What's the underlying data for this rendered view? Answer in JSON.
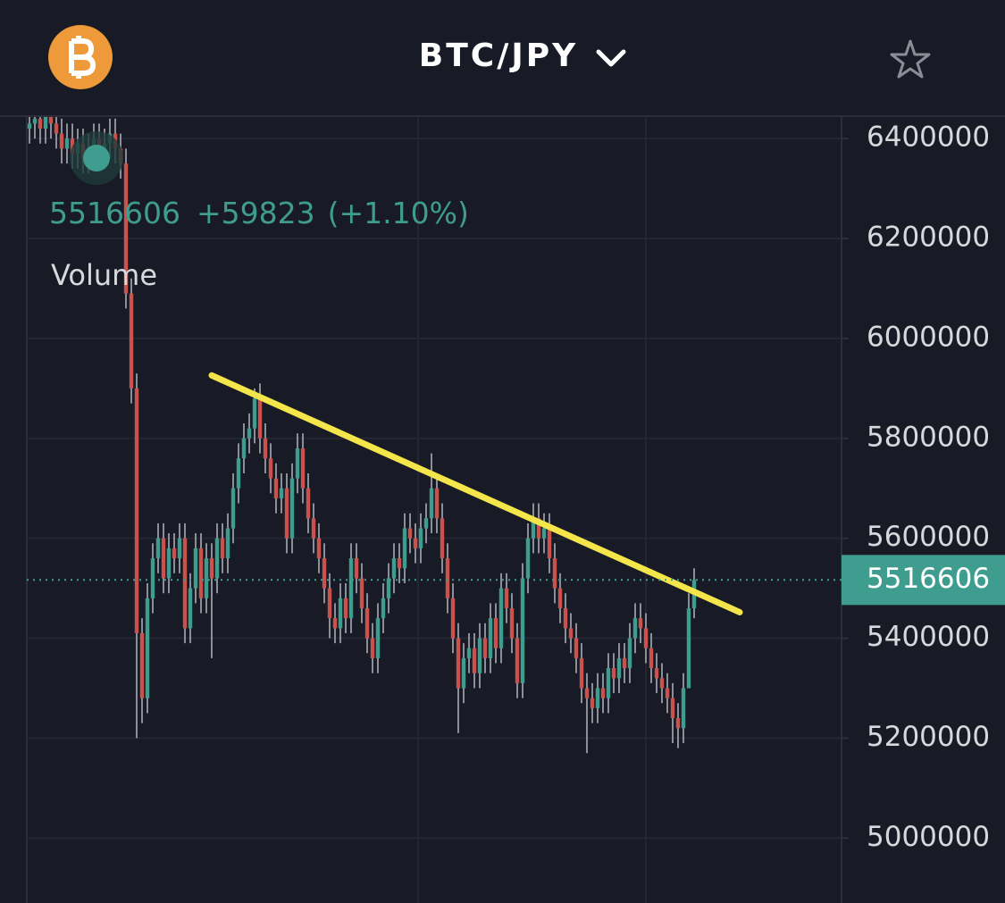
{
  "header": {
    "title": "BTC/JPY"
  },
  "chart_data": {
    "type": "candlestick",
    "indicator": "Volume",
    "legend": {
      "price": 5516606,
      "change": "+59823",
      "change_pct": "(+1.10%)"
    },
    "last_price": 5516606,
    "up_color": "#3f9d8f",
    "down_color": "#c9524d",
    "ylim": [
      4870000,
      6445000
    ],
    "yticks": [
      5000000,
      5200000,
      5400000,
      5600000,
      5800000,
      6000000,
      6200000,
      6400000
    ],
    "grid": true,
    "trendline": {
      "from": [
        34,
        5926000
      ],
      "to": [
        132.5,
        5452000
      ],
      "color": "#f3e54a"
    },
    "open": [
      6420000,
      6430000,
      6440000,
      6420000,
      6450000,
      6430000,
      6410000,
      6380000,
      6400000,
      6370000,
      6390000,
      6360000,
      6380000,
      6400000,
      6370000,
      6390000,
      6410000,
      6380000,
      6350000,
      6090000,
      5900000,
      5410000,
      5280000,
      5480000,
      5560000,
      5600000,
      5520000,
      5580000,
      5560000,
      5600000,
      5420000,
      5500000,
      5580000,
      5480000,
      5560000,
      5520000,
      5600000,
      5560000,
      5620000,
      5700000,
      5760000,
      5800000,
      5820000,
      5880000,
      5800000,
      5760000,
      5720000,
      5680000,
      5700000,
      5600000,
      5720000,
      5780000,
      5700000,
      5640000,
      5600000,
      5560000,
      5500000,
      5440000,
      5420000,
      5480000,
      5440000,
      5560000,
      5520000,
      5460000,
      5400000,
      5360000,
      5440000,
      5480000,
      5520000,
      5560000,
      5540000,
      5620000,
      5600000,
      5580000,
      5620000,
      5640000,
      5700000,
      5640000,
      5560000,
      5480000,
      5400000,
      5300000,
      5360000,
      5380000,
      5330000,
      5400000,
      5360000,
      5440000,
      5380000,
      5500000,
      5460000,
      5400000,
      5310000,
      5520000,
      5600000,
      5640000,
      5600000,
      5620000,
      5560000,
      5500000,
      5460000,
      5420000,
      5400000,
      5360000,
      5300000,
      5280000,
      5260000,
      5300000,
      5280000,
      5340000,
      5320000,
      5360000,
      5340000,
      5400000,
      5440000,
      5420000,
      5380000,
      5340000,
      5320000,
      5300000,
      5280000,
      5240000,
      5220000,
      5300000,
      5460000
    ],
    "high": [
      6460000,
      6470000,
      6470000,
      6480000,
      6480000,
      6460000,
      6440000,
      6430000,
      6430000,
      6420000,
      6420000,
      6410000,
      6430000,
      6430000,
      6420000,
      6440000,
      6440000,
      6410000,
      6380000,
      6120000,
      5930000,
      5440000,
      5510000,
      5590000,
      5630000,
      5630000,
      5610000,
      5610000,
      5630000,
      5630000,
      5530000,
      5610000,
      5610000,
      5590000,
      5590000,
      5630000,
      5630000,
      5650000,
      5730000,
      5790000,
      5830000,
      5850000,
      5900000,
      5910000,
      5830000,
      5790000,
      5750000,
      5730000,
      5730000,
      5750000,
      5810000,
      5810000,
      5730000,
      5670000,
      5630000,
      5590000,
      5530000,
      5470000,
      5510000,
      5510000,
      5590000,
      5590000,
      5550000,
      5490000,
      5430000,
      5470000,
      5510000,
      5550000,
      5590000,
      5590000,
      5650000,
      5650000,
      5630000,
      5650000,
      5670000,
      5770000,
      5730000,
      5670000,
      5590000,
      5510000,
      5430000,
      5390000,
      5410000,
      5410000,
      5430000,
      5430000,
      5470000,
      5470000,
      5530000,
      5530000,
      5490000,
      5430000,
      5550000,
      5630000,
      5670000,
      5670000,
      5650000,
      5650000,
      5590000,
      5530000,
      5490000,
      5450000,
      5430000,
      5390000,
      5330000,
      5310000,
      5330000,
      5330000,
      5370000,
      5370000,
      5390000,
      5390000,
      5430000,
      5470000,
      5470000,
      5450000,
      5410000,
      5370000,
      5350000,
      5330000,
      5310000,
      5270000,
      5330000,
      5490000,
      5540000
    ],
    "low": [
      6390000,
      6400000,
      6390000,
      6390000,
      6400000,
      6380000,
      6350000,
      6350000,
      6340000,
      6340000,
      6330000,
      6330000,
      6350000,
      6340000,
      6340000,
      6360000,
      6350000,
      6320000,
      6060000,
      5870000,
      5200000,
      5230000,
      5250000,
      5450000,
      5530000,
      5490000,
      5490000,
      5530000,
      5530000,
      5390000,
      5390000,
      5470000,
      5450000,
      5450000,
      5360000,
      5490000,
      5530000,
      5530000,
      5590000,
      5670000,
      5730000,
      5770000,
      5790000,
      5770000,
      5730000,
      5690000,
      5650000,
      5650000,
      5570000,
      5570000,
      5690000,
      5670000,
      5610000,
      5570000,
      5530000,
      5470000,
      5400000,
      5390000,
      5390000,
      5410000,
      5410000,
      5490000,
      5430000,
      5370000,
      5330000,
      5330000,
      5410000,
      5450000,
      5490000,
      5510000,
      5510000,
      5570000,
      5550000,
      5550000,
      5590000,
      5610000,
      5610000,
      5530000,
      5450000,
      5370000,
      5210000,
      5270000,
      5330000,
      5300000,
      5300000,
      5330000,
      5330000,
      5350000,
      5350000,
      5430000,
      5370000,
      5280000,
      5280000,
      5490000,
      5570000,
      5570000,
      5570000,
      5530000,
      5470000,
      5430000,
      5390000,
      5370000,
      5330000,
      5270000,
      5170000,
      5230000,
      5230000,
      5250000,
      5250000,
      5290000,
      5290000,
      5310000,
      5310000,
      5370000,
      5390000,
      5350000,
      5310000,
      5290000,
      5270000,
      5250000,
      5190000,
      5180000,
      5190000,
      5300000,
      5440000
    ],
    "close": [
      6430000,
      6440000,
      6420000,
      6450000,
      6430000,
      6410000,
      6380000,
      6400000,
      6370000,
      6390000,
      6360000,
      6380000,
      6400000,
      6370000,
      6390000,
      6410000,
      6380000,
      6350000,
      6090000,
      5900000,
      5410000,
      5280000,
      5480000,
      5560000,
      5600000,
      5520000,
      5580000,
      5560000,
      5600000,
      5420000,
      5500000,
      5580000,
      5480000,
      5560000,
      5520000,
      5600000,
      5560000,
      5620000,
      5700000,
      5760000,
      5800000,
      5820000,
      5880000,
      5800000,
      5760000,
      5720000,
      5680000,
      5700000,
      5600000,
      5720000,
      5780000,
      5700000,
      5640000,
      5600000,
      5560000,
      5500000,
      5440000,
      5420000,
      5480000,
      5440000,
      5560000,
      5520000,
      5460000,
      5400000,
      5360000,
      5440000,
      5480000,
      5520000,
      5560000,
      5540000,
      5620000,
      5600000,
      5580000,
      5620000,
      5640000,
      5700000,
      5640000,
      5560000,
      5480000,
      5400000,
      5300000,
      5360000,
      5380000,
      5330000,
      5400000,
      5360000,
      5440000,
      5380000,
      5500000,
      5460000,
      5400000,
      5310000,
      5520000,
      5600000,
      5640000,
      5600000,
      5620000,
      5560000,
      5500000,
      5460000,
      5420000,
      5400000,
      5360000,
      5300000,
      5280000,
      5260000,
      5300000,
      5280000,
      5340000,
      5320000,
      5360000,
      5340000,
      5400000,
      5440000,
      5420000,
      5380000,
      5340000,
      5320000,
      5300000,
      5280000,
      5240000,
      5220000,
      5300000,
      5460000,
      5516606
    ]
  }
}
